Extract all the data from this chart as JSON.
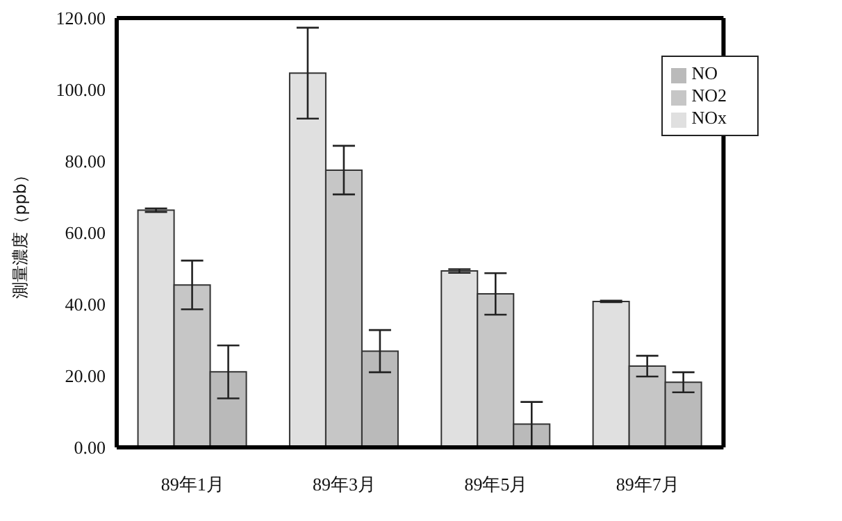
{
  "chart_data": {
    "type": "bar",
    "ylabel": "測量濃度（ppb）",
    "categories": [
      "89年1月",
      "89年3月",
      "89年5月",
      "89年7月"
    ],
    "series": [
      {
        "name": "NOx",
        "color": "#e0e0e0",
        "values": [
          66.3,
          104.6,
          49.3,
          40.8
        ],
        "errors": [
          0.5,
          12.7,
          0.5,
          0.2
        ]
      },
      {
        "name": "NO2",
        "color": "#c6c6c6",
        "values": [
          45.4,
          77.5,
          42.9,
          22.7
        ],
        "errors": [
          6.8,
          6.8,
          5.8,
          2.9
        ]
      },
      {
        "name": "NO",
        "color": "#bababa",
        "values": [
          21.1,
          26.9,
          6.5,
          18.2
        ],
        "errors": [
          7.4,
          5.9,
          6.2,
          2.8
        ]
      }
    ],
    "ylim": [
      0,
      120
    ],
    "yticks": [
      {
        "value": 0,
        "label": "0.00"
      },
      {
        "value": 20,
        "label": "20.00"
      },
      {
        "value": 40,
        "label": "40.00"
      },
      {
        "value": 60,
        "label": "60.00"
      },
      {
        "value": 80,
        "label": "80.00"
      },
      {
        "value": 100,
        "label": "100.00"
      },
      {
        "value": 120,
        "label": "120.00"
      }
    ],
    "legend": "top right"
  }
}
